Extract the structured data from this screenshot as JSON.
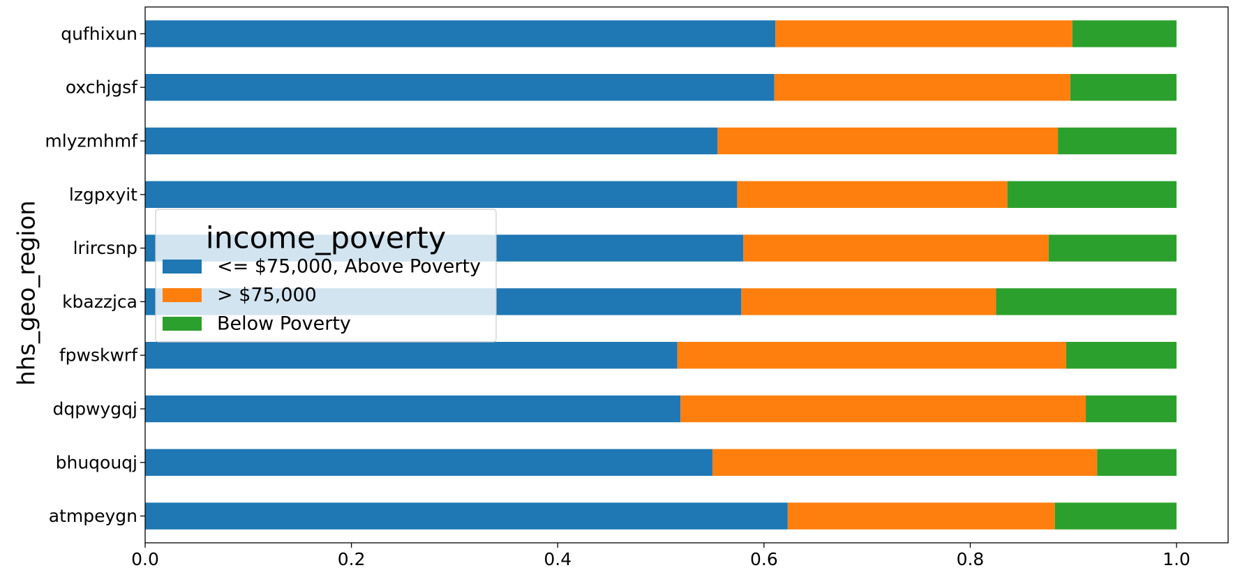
{
  "chart_data": {
    "type": "bar",
    "orientation": "horizontal",
    "stacked": true,
    "title": "",
    "xlabel": "",
    "ylabel": "hhs_geo_region",
    "xlim": [
      0.0,
      1.05
    ],
    "xticks": [
      "0.0",
      "0.2",
      "0.4",
      "0.6",
      "0.8",
      "1.0"
    ],
    "grid": false,
    "legend_title": "income_poverty",
    "legend_placement": "center-left",
    "categories": [
      "atmpeygn",
      "bhuqouqj",
      "dqpwygqj",
      "fpwskwrf",
      "kbazzjca",
      "lrircsnp",
      "lzgpxyit",
      "mlyzmhmf",
      "oxchjgsf",
      "qufhixun"
    ],
    "series": [
      {
        "name": "<= $75,000, Above Poverty",
        "color": "#1f77b4",
        "values": [
          0.623,
          0.55,
          0.519,
          0.516,
          0.578,
          0.58,
          0.574,
          0.555,
          0.61,
          0.611
        ]
      },
      {
        "name": "> $75,000",
        "color": "#ff7f0e",
        "values": [
          0.259,
          0.373,
          0.393,
          0.377,
          0.247,
          0.296,
          0.262,
          0.33,
          0.287,
          0.288
        ]
      },
      {
        "name": "Below Poverty",
        "color": "#2ca02c",
        "values": [
          0.118,
          0.077,
          0.088,
          0.107,
          0.175,
          0.124,
          0.164,
          0.115,
          0.103,
          0.101
        ]
      }
    ]
  }
}
